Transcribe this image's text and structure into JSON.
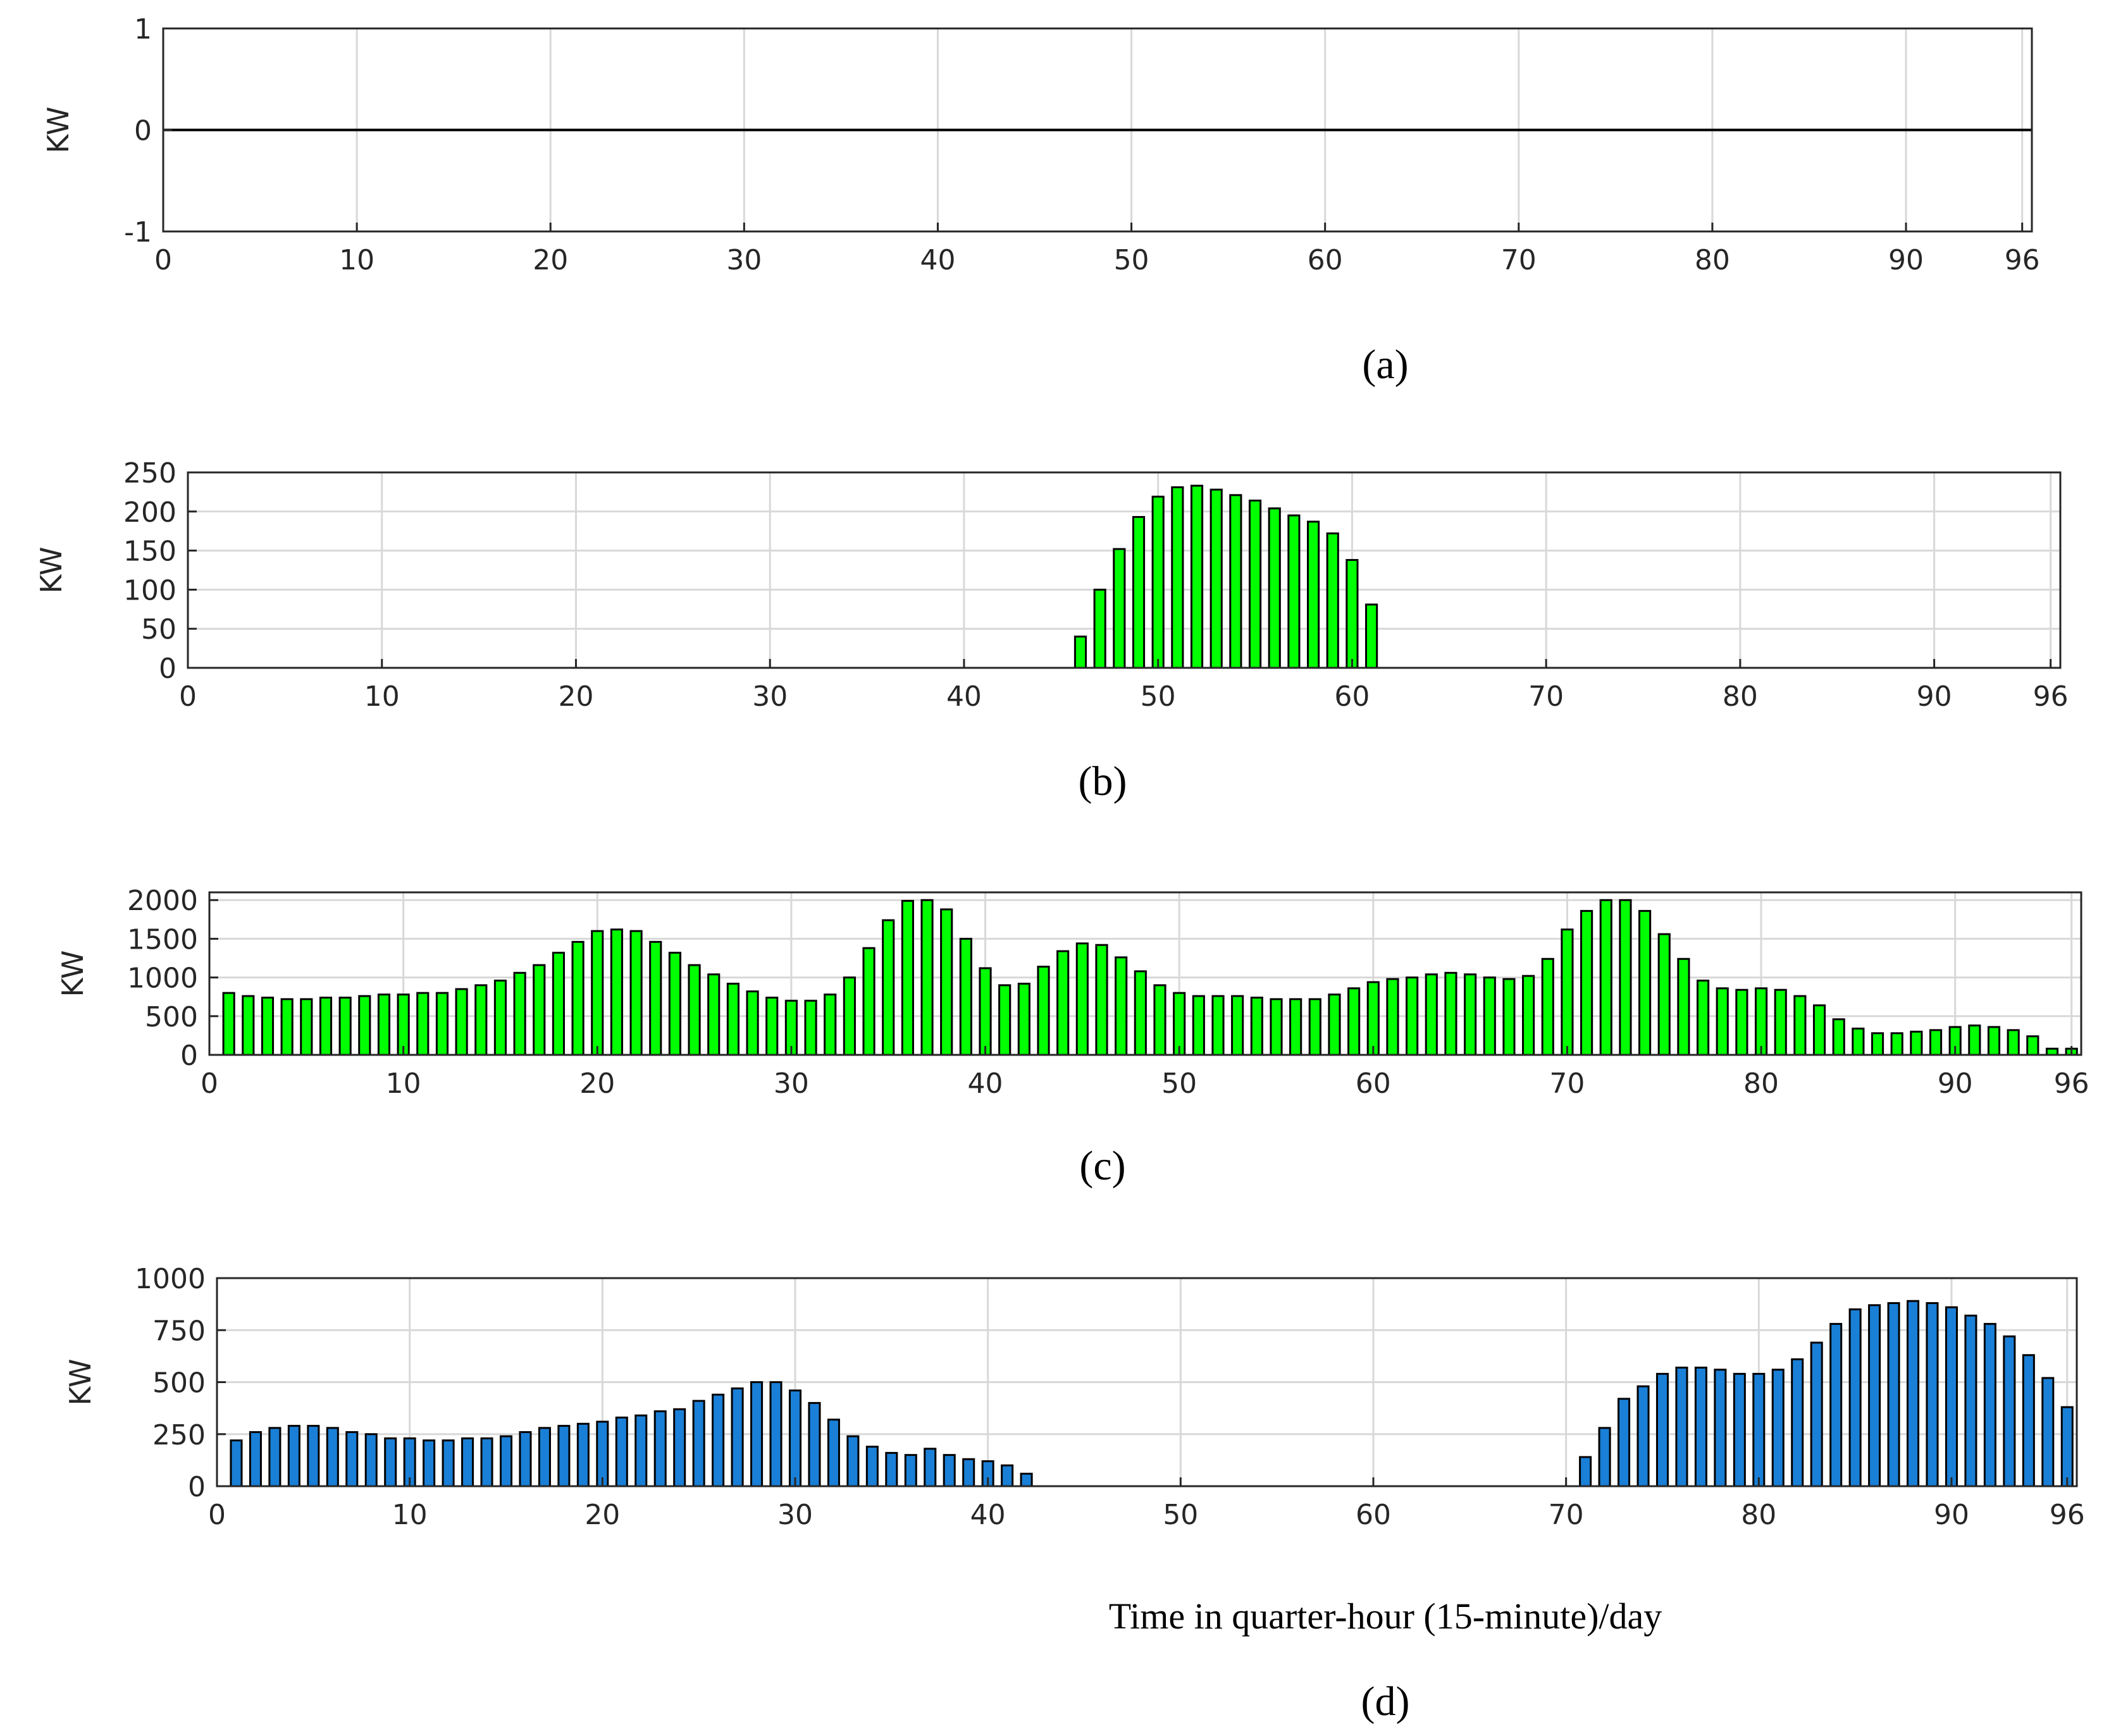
{
  "chart_data": [
    {
      "type": "bar",
      "caption": "(a)",
      "ylabel": "KW",
      "xlabel": "",
      "xlim": [
        0,
        96.5
      ],
      "ylim": [
        -1,
        1
      ],
      "xticks": [
        0,
        10,
        20,
        30,
        40,
        50,
        60,
        70,
        80,
        90,
        96
      ],
      "yticks": [
        -1,
        0,
        1
      ],
      "grid": true,
      "bar_color": "#00ff00",
      "x": [],
      "values": [],
      "note_zero_line": true
    },
    {
      "type": "bar",
      "caption": "(b)",
      "ylabel": "KW",
      "xlabel": "",
      "xlim": [
        0,
        96.5
      ],
      "ylim": [
        0,
        250
      ],
      "xticks": [
        0,
        10,
        20,
        30,
        40,
        50,
        60,
        70,
        80,
        90,
        96
      ],
      "yticks": [
        0,
        50,
        100,
        150,
        200,
        250
      ],
      "grid": true,
      "bar_color": "#00ff00",
      "x": [
        46,
        47,
        48,
        49,
        50,
        51,
        52,
        53,
        54,
        55,
        56,
        57,
        58,
        59,
        60,
        61
      ],
      "values": [
        40,
        100,
        152,
        193,
        219,
        231,
        233,
        228,
        221,
        214,
        204,
        195,
        187,
        172,
        138,
        81
      ]
    },
    {
      "type": "bar",
      "caption": "(c)",
      "ylabel": "KW",
      "xlabel": "",
      "xlim": [
        0,
        96.5
      ],
      "ylim": [
        0,
        2100
      ],
      "xticks": [
        0,
        10,
        20,
        30,
        40,
        50,
        60,
        70,
        80,
        90,
        96
      ],
      "yticks": [
        0,
        500,
        1000,
        1500,
        2000
      ],
      "grid": true,
      "bar_color": "#00ff00",
      "x": [
        1,
        2,
        3,
        4,
        5,
        6,
        7,
        8,
        9,
        10,
        11,
        12,
        13,
        14,
        15,
        16,
        17,
        18,
        19,
        20,
        21,
        22,
        23,
        24,
        25,
        26,
        27,
        28,
        29,
        30,
        31,
        32,
        33,
        34,
        35,
        36,
        37,
        38,
        39,
        40,
        41,
        42,
        43,
        44,
        45,
        46,
        47,
        48,
        49,
        50,
        51,
        52,
        53,
        54,
        55,
        56,
        57,
        58,
        59,
        60,
        61,
        62,
        63,
        64,
        65,
        66,
        67,
        68,
        69,
        70,
        71,
        72,
        73,
        74,
        75,
        76,
        77,
        78,
        79,
        80,
        81,
        82,
        83,
        84,
        85,
        86,
        87,
        88,
        89,
        90,
        91,
        92,
        93,
        94,
        95,
        96
      ],
      "values": [
        800,
        760,
        740,
        720,
        720,
        740,
        740,
        760,
        780,
        780,
        800,
        800,
        850,
        900,
        960,
        1060,
        1160,
        1320,
        1460,
        1600,
        1620,
        1600,
        1460,
        1320,
        1160,
        1040,
        920,
        820,
        740,
        700,
        700,
        780,
        1000,
        1380,
        1740,
        1990,
        2000,
        1880,
        1500,
        1120,
        900,
        920,
        1140,
        1340,
        1440,
        1420,
        1260,
        1080,
        900,
        800,
        760,
        760,
        760,
        740,
        720,
        720,
        720,
        780,
        860,
        940,
        980,
        1000,
        1040,
        1060,
        1040,
        1000,
        980,
        1020,
        1240,
        1620,
        1860,
        2000,
        2000,
        1860,
        1560,
        1240,
        960,
        860,
        840,
        860,
        840,
        760,
        640,
        460,
        340,
        280,
        280,
        300,
        320,
        360,
        380,
        360,
        320,
        240,
        80,
        80
      ]
    },
    {
      "type": "bar",
      "caption": "(d)",
      "ylabel": "KW",
      "xlabel": "Time in quarter-hour (15-minute)/day",
      "xlim": [
        0,
        96.5
      ],
      "ylim": [
        0,
        1000
      ],
      "xticks": [
        0,
        10,
        20,
        30,
        40,
        50,
        60,
        70,
        80,
        90,
        96
      ],
      "yticks": [
        0,
        250,
        500,
        750,
        1000
      ],
      "grid": true,
      "bar_color": "#1a7fd6",
      "x": [
        1,
        2,
        3,
        4,
        5,
        6,
        7,
        8,
        9,
        10,
        11,
        12,
        13,
        14,
        15,
        16,
        17,
        18,
        19,
        20,
        21,
        22,
        23,
        24,
        25,
        26,
        27,
        28,
        29,
        30,
        31,
        32,
        33,
        34,
        35,
        36,
        37,
        38,
        39,
        40,
        41,
        42,
        71,
        72,
        73,
        74,
        75,
        76,
        77,
        78,
        79,
        80,
        81,
        82,
        83,
        84,
        85,
        86,
        87,
        88,
        89,
        90,
        91,
        92,
        93,
        94,
        95,
        96
      ],
      "values": [
        220,
        260,
        280,
        290,
        290,
        280,
        260,
        250,
        230,
        230,
        220,
        220,
        230,
        230,
        240,
        260,
        280,
        290,
        300,
        310,
        330,
        340,
        360,
        370,
        410,
        440,
        470,
        500,
        500,
        460,
        400,
        320,
        240,
        190,
        160,
        150,
        180,
        150,
        130,
        120,
        100,
        60,
        140,
        280,
        420,
        480,
        540,
        570,
        570,
        560,
        540,
        540,
        560,
        610,
        690,
        780,
        850,
        870,
        880,
        890,
        880,
        860,
        820,
        780,
        720,
        630,
        520,
        380
      ]
    }
  ]
}
